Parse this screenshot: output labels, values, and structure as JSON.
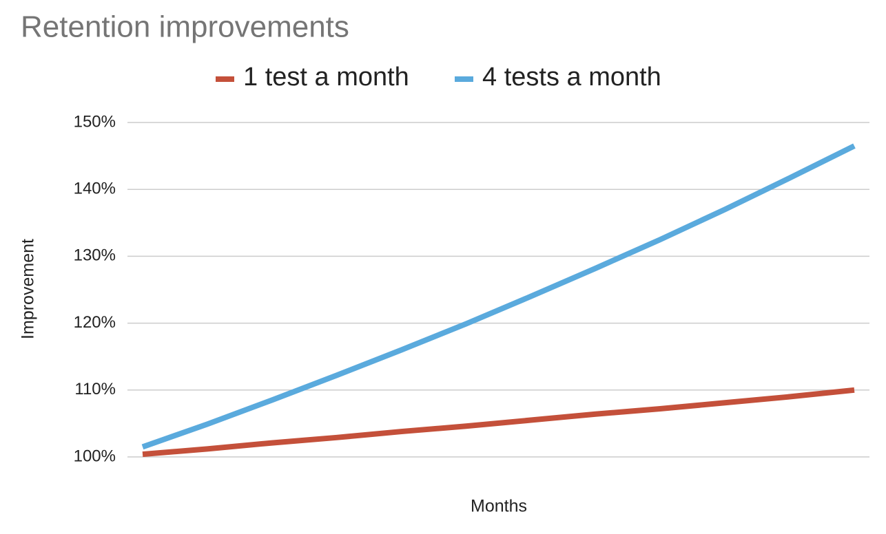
{
  "chart_data": {
    "type": "line",
    "title": "Retention improvements",
    "x_label": "Months",
    "y_label": "Improvement",
    "categories": [
      null,
      null,
      null,
      null,
      null,
      null,
      null,
      null,
      null,
      null,
      null,
      null
    ],
    "series": [
      {
        "name": "1 test a month",
        "color": "#c4503a",
        "values": [
          100.4,
          101.2,
          102.1,
          102.9,
          103.8,
          104.6,
          105.5,
          106.4,
          107.2,
          108.1,
          109.0,
          110.0
        ]
      },
      {
        "name": "4 tests a month",
        "color": "#5aaadd",
        "values": [
          101.5,
          104.9,
          108.5,
          112.2,
          116.0,
          119.9,
          124.0,
          128.2,
          132.5,
          137.0,
          141.7,
          146.5
        ]
      }
    ],
    "ylim": [
      100,
      150
    ],
    "yticks": [
      {
        "value": 100,
        "label": "100%"
      },
      {
        "value": 110,
        "label": "110%"
      },
      {
        "value": 120,
        "label": "120%"
      },
      {
        "value": 130,
        "label": "130%"
      },
      {
        "value": 140,
        "label": "140%"
      },
      {
        "value": 150,
        "label": "150%"
      }
    ],
    "grid": true,
    "legend": "top"
  }
}
